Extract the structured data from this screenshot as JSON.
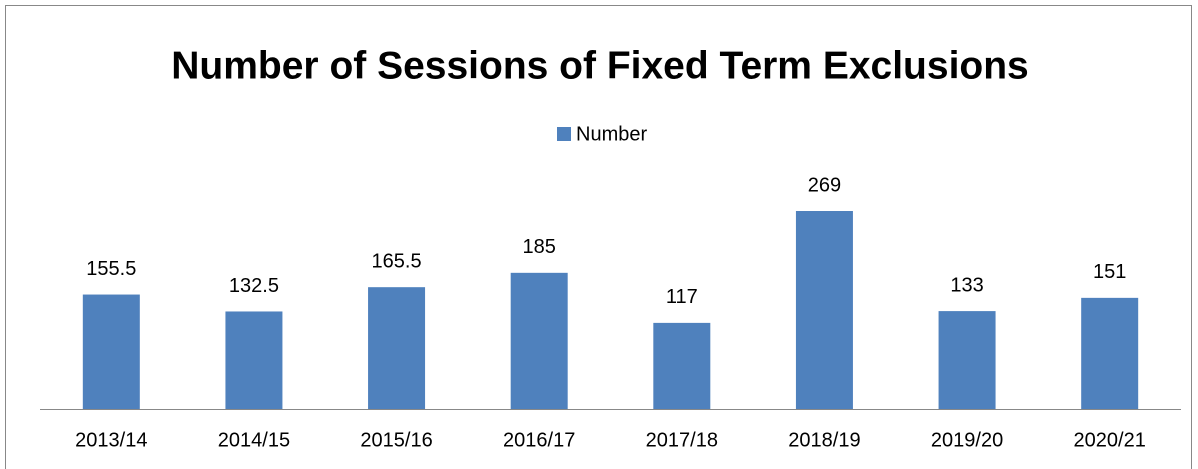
{
  "chart_data": {
    "type": "bar",
    "title": "Number of Sessions of Fixed Term Exclusions",
    "categories": [
      "2013/14",
      "2014/15",
      "2015/16",
      "2016/17",
      "2017/18",
      "2018/19",
      "2019/20",
      "2020/21"
    ],
    "series": [
      {
        "name": "Number",
        "color": "#4f81bd",
        "values": [
          155.5,
          132.5,
          165.5,
          185,
          117,
          269,
          133,
          151
        ]
      }
    ],
    "legend": "top"
  }
}
